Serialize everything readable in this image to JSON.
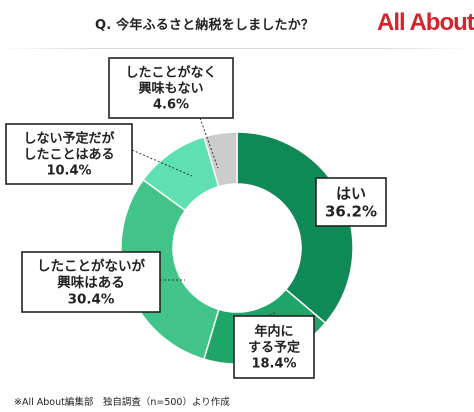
{
  "header": {
    "title": "Q. 今年ふるさと納税をしましたか？",
    "brand": "All About",
    "brand_color": "#d4232a"
  },
  "chart_data": {
    "type": "pie",
    "donut": true,
    "title": "Q. 今年ふるさと納税をしましたか？",
    "slices": [
      {
        "label_lines": [
          "はい"
        ],
        "value": 36.2,
        "value_text": "36.2%",
        "color": "#0f8a57"
      },
      {
        "label_lines": [
          "年内に",
          "する予定"
        ],
        "value": 18.4,
        "value_text": "18.4%",
        "color": "#1fa46a"
      },
      {
        "label_lines": [
          "したことがないが",
          "興味はある"
        ],
        "value": 30.4,
        "value_text": "30.4%",
        "color": "#41c389"
      },
      {
        "label_lines": [
          "しない予定だが",
          "したことはある"
        ],
        "value": 10.4,
        "value_text": "10.4%",
        "color": "#5fe0b0"
      },
      {
        "label_lines": [
          "したことがなく",
          "興味もない"
        ],
        "value": 4.6,
        "value_text": "4.6%",
        "color": "#cccccc"
      }
    ],
    "start": "top",
    "direction": "clockwise"
  },
  "footer": {
    "source": "※All About編集部　独自調査（n=500）より作成"
  }
}
